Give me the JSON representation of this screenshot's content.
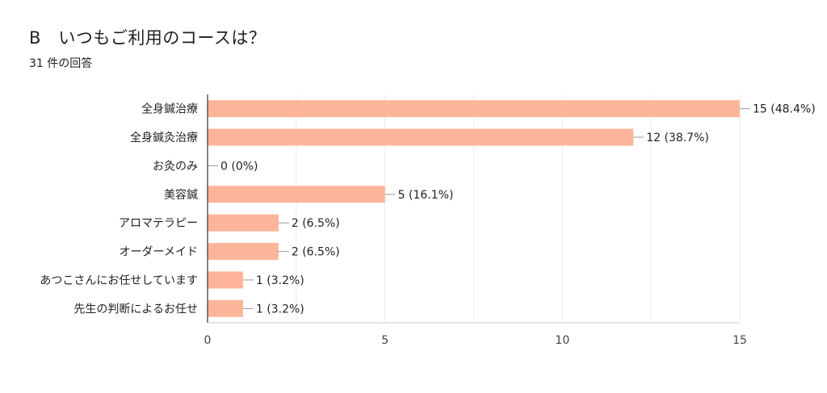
{
  "question": {
    "title": "B　いつもご利用のコースは？",
    "response_count": "31 件の回答"
  },
  "chart_data": {
    "type": "bar",
    "orientation": "horizontal",
    "categories": [
      "全身鍼治療",
      "全身鍼灸治療",
      "お灸のみ",
      "美容鍼",
      "アロマテラピー",
      "オーダーメイド",
      "あつこさんにお任せしています",
      "先生の判断によるお任せ"
    ],
    "values": [
      15,
      12,
      0,
      5,
      2,
      2,
      1,
      1
    ],
    "data_labels": [
      "15 (48.4%)",
      "12 (38.7%)",
      "0 (0%)",
      "5 (16.1%)",
      "2 (6.5%)",
      "2 (6.5%)",
      "1 (3.2%)",
      "1 (3.2%)"
    ],
    "xlim": [
      0,
      15
    ],
    "xticks": [
      0,
      5,
      10,
      15
    ],
    "grid": true,
    "bar_color": "#fdb59a"
  }
}
